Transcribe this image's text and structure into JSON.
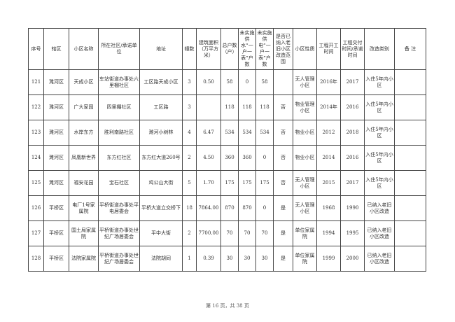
{
  "table": {
    "headers": [
      "序号",
      "辖区",
      "小区名称",
      "所在社区/承诺单位",
      "地址",
      "幢数",
      "建筑面积（万平方米）",
      "总户数（户）",
      "未实施供水“一户一表”户数",
      "未实施供电“一户一表”户数",
      "是否已纳入老旧小区改造范围",
      "小区性质",
      "工程开工时间",
      "工程交付时间/承诺时间",
      "改造类别",
      "备 注"
    ],
    "rows": [
      [
        "121",
        "濉河区",
        "天成小区",
        "车站街道办事处六里棚社区",
        "工区路天成小区",
        "3",
        "0.50",
        "58",
        "0",
        "58",
        "",
        "无人管理小区",
        "2016年",
        "2017",
        "入住5年内小区",
        ""
      ],
      [
        "122",
        "濉河区",
        "广大家园",
        "四里棚社区",
        "工区路",
        "3",
        "",
        "118",
        "118",
        "118",
        "否",
        "物业管理小区",
        "2014年",
        "2016",
        "入住5年内小区",
        ""
      ],
      [
        "123",
        "濉河区",
        "水岸东方",
        "胜利南路社区",
        "濉河小树林",
        "4",
        "6.47",
        "534",
        "534",
        "534",
        "否",
        "物业小区",
        "2012",
        "2018",
        "入住5年内小区",
        ""
      ],
      [
        "124",
        "濉河区",
        "凤凰新世界",
        "东方红社区",
        "东方红大道260号",
        "2",
        "4.50",
        "360",
        "360",
        "0",
        "否",
        "物业小区",
        "2014",
        "2016",
        "入住5年内小区",
        ""
      ],
      [
        "125",
        "濉河区",
        "福安花园",
        "宝石社区",
        "鸡公山大街",
        "5",
        "1.70",
        "175",
        "175",
        "175",
        "否",
        "无人管理小区",
        "2015",
        "2017",
        "入住5年内小区",
        ""
      ],
      [
        "126",
        "平桥区",
        "电厂1号家属院",
        "平桥街道办事处平电居委会",
        "平桥大道立交桥下",
        "18",
        "7864.00",
        "870",
        "870",
        "0",
        "是",
        "无人管理小区",
        "1968",
        "1990",
        "已纳入老旧小区改造",
        ""
      ],
      [
        "127",
        "平桥区",
        "国土局家属院",
        "平桥街道办事处世纪广场居委会",
        "平中大街",
        "2",
        "7700.00",
        "70",
        "70",
        "70",
        "是",
        "单位家属院",
        "1994",
        "1995",
        "已纳入老旧小区改造",
        ""
      ],
      [
        "128",
        "平桥区",
        "法院家属院",
        "平桥街道办事处世纪广场居委会",
        "法院胡同",
        "1",
        "0.39",
        "30",
        "30",
        "30",
        "是",
        "单位家属院",
        "1999",
        "2000",
        "已纳入老旧小区改造",
        ""
      ]
    ]
  },
  "footer": "第 16 页，共 38 页"
}
